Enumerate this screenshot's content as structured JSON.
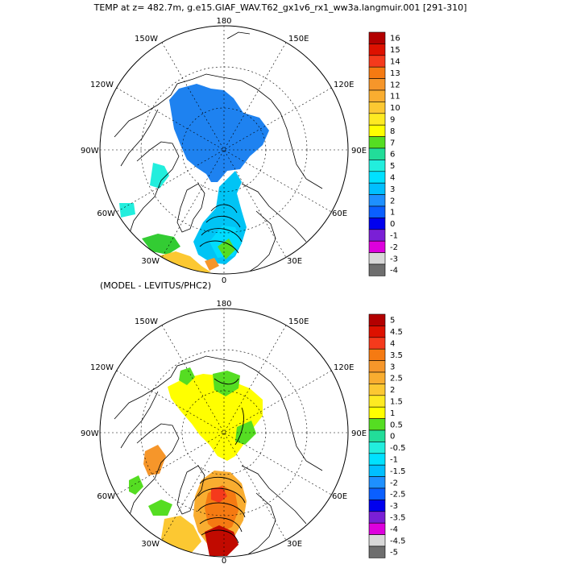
{
  "title": "TEMP at z= 482.7m, g.e15.GIAF_WAV.T62_gx1v6_rx1_ww3a.langmuir.001 [291-310]",
  "diff_title": "(MODEL - LEVITUS/PHC2)",
  "longitude_labels": {
    "top": "180",
    "bottom": "0",
    "left": "90W",
    "right": "90E",
    "upper_left_1": "150W",
    "upper_left_2": "120W",
    "upper_right_1": "150E",
    "upper_right_2": "120E",
    "lower_left_1": "60W",
    "lower_left_2": "30W",
    "lower_right_1": "60E",
    "lower_right_2": "30E"
  },
  "colorbar_top": {
    "labels": [
      "16",
      "15",
      "14",
      "13",
      "12",
      "11",
      "10",
      "9",
      "8",
      "7",
      "6",
      "5",
      "4",
      "3",
      "2",
      "1",
      "0",
      "-1",
      "-2",
      "-3",
      "-4"
    ],
    "colors": [
      "#b30000",
      "#dd1100",
      "#f53a1c",
      "#f57a12",
      "#f6962a",
      "#f9ad30",
      "#fcc832",
      "#feea22",
      "#ffff00",
      "#55dd22",
      "#22dd99",
      "#22eedd",
      "#00e1ff",
      "#00bfff",
      "#1e90ff",
      "#0a5fff",
      "#0000ee",
      "#7a1fd6",
      "#dd00dd",
      "#d8d8d8",
      "#6e6e6e"
    ]
  },
  "colorbar_bottom": {
    "labels": [
      "5",
      "4.5",
      "4",
      "3.5",
      "3",
      "2.5",
      "2",
      "1.5",
      "1",
      "0.5",
      "0",
      "-0.5",
      "-1",
      "-1.5",
      "-2",
      "-2.5",
      "-3",
      "-3.5",
      "-4",
      "-4.5",
      "-5"
    ],
    "colors": [
      "#b30000",
      "#dd1100",
      "#f53a1c",
      "#f57a12",
      "#f6962a",
      "#f9ad30",
      "#fcc832",
      "#feea22",
      "#ffff00",
      "#55dd22",
      "#22dd99",
      "#22eedd",
      "#00e1ff",
      "#00bfff",
      "#1e90ff",
      "#0a5fff",
      "#0000ee",
      "#7a1fd6",
      "#dd00dd",
      "#d8d8d8",
      "#6e6e6e"
    ]
  }
}
